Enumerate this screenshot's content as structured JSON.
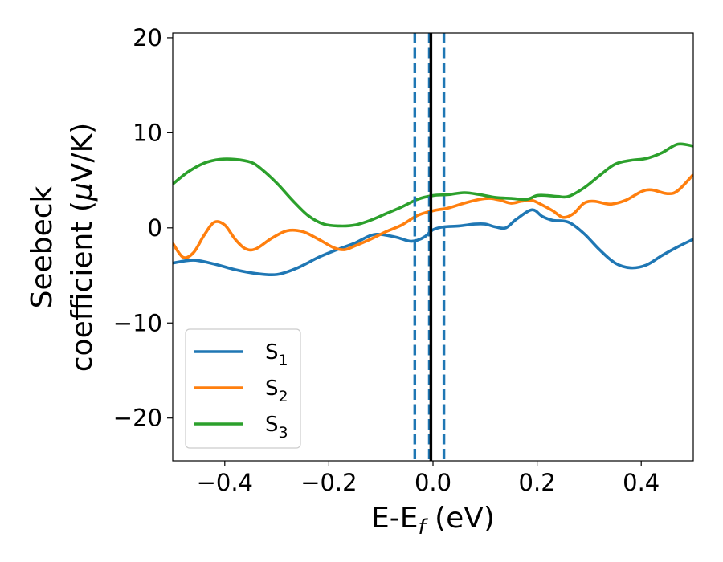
{
  "chart_data": {
    "type": "line",
    "title": "",
    "xlabel": {
      "main": "E-E",
      "sub": "f",
      "unit": " (eV)"
    },
    "ylabel": {
      "line1": "Seebeck",
      "line2_main": "coefficient  (",
      "line2_mu": "μ",
      "line2_unit": "V/K)"
    },
    "xlim": [
      -0.5,
      0.5
    ],
    "ylim": [
      -24.5,
      20.5
    ],
    "xticks": [
      {
        "value": -0.4,
        "label": "−0.4"
      },
      {
        "value": -0.2,
        "label": "−0.2"
      },
      {
        "value": 0.0,
        "label": "0.0"
      },
      {
        "value": 0.2,
        "label": "0.2"
      },
      {
        "value": 0.4,
        "label": "0.4"
      }
    ],
    "yticks": [
      {
        "value": -20,
        "label": "−20"
      },
      {
        "value": -10,
        "label": "−10"
      },
      {
        "value": 0,
        "label": "0"
      },
      {
        "value": 10,
        "label": "10"
      },
      {
        "value": 20,
        "label": "20"
      }
    ],
    "grid": false,
    "legend_position": "lower-left",
    "series": [
      {
        "name": "S",
        "sub": "1",
        "color": "#1f77b4",
        "points": [
          [
            -0.5,
            -3.7
          ],
          [
            -0.46,
            -3.4
          ],
          [
            -0.42,
            -3.8
          ],
          [
            -0.38,
            -4.4
          ],
          [
            -0.34,
            -4.8
          ],
          [
            -0.3,
            -4.9
          ],
          [
            -0.26,
            -4.2
          ],
          [
            -0.22,
            -3.1
          ],
          [
            -0.18,
            -2.2
          ],
          [
            -0.15,
            -1.6
          ],
          [
            -0.12,
            -0.8
          ],
          [
            -0.1,
            -0.7
          ],
          [
            -0.07,
            -1.0
          ],
          [
            -0.045,
            -1.4
          ],
          [
            -0.03,
            -1.3
          ],
          [
            -0.015,
            -0.9
          ],
          [
            0.0,
            -0.2
          ],
          [
            0.02,
            0.1
          ],
          [
            0.05,
            0.2
          ],
          [
            0.08,
            0.4
          ],
          [
            0.1,
            0.4
          ],
          [
            0.12,
            0.1
          ],
          [
            0.14,
            0.0
          ],
          [
            0.16,
            0.9
          ],
          [
            0.19,
            1.9
          ],
          [
            0.21,
            1.2
          ],
          [
            0.23,
            0.8
          ],
          [
            0.26,
            0.6
          ],
          [
            0.29,
            -0.6
          ],
          [
            0.32,
            -2.3
          ],
          [
            0.35,
            -3.7
          ],
          [
            0.38,
            -4.2
          ],
          [
            0.41,
            -3.9
          ],
          [
            0.44,
            -2.9
          ],
          [
            0.47,
            -2.0
          ],
          [
            0.5,
            -1.2
          ]
        ]
      },
      {
        "name": "S",
        "sub": "2",
        "color": "#ff7f0e",
        "points": [
          [
            -0.5,
            -1.6
          ],
          [
            -0.48,
            -3.1
          ],
          [
            -0.46,
            -2.6
          ],
          [
            -0.44,
            -0.8
          ],
          [
            -0.42,
            0.6
          ],
          [
            -0.4,
            0.3
          ],
          [
            -0.38,
            -1.2
          ],
          [
            -0.36,
            -2.2
          ],
          [
            -0.34,
            -2.2
          ],
          [
            -0.31,
            -1.1
          ],
          [
            -0.28,
            -0.3
          ],
          [
            -0.25,
            -0.4
          ],
          [
            -0.22,
            -1.2
          ],
          [
            -0.19,
            -2.1
          ],
          [
            -0.17,
            -2.3
          ],
          [
            -0.15,
            -1.9
          ],
          [
            -0.12,
            -1.2
          ],
          [
            -0.09,
            -0.4
          ],
          [
            -0.06,
            0.3
          ],
          [
            -0.03,
            1.3
          ],
          [
            0.0,
            1.8
          ],
          [
            0.03,
            2.1
          ],
          [
            0.06,
            2.6
          ],
          [
            0.09,
            3.0
          ],
          [
            0.11,
            3.1
          ],
          [
            0.13,
            2.9
          ],
          [
            0.15,
            2.6
          ],
          [
            0.17,
            2.8
          ],
          [
            0.19,
            2.9
          ],
          [
            0.21,
            2.4
          ],
          [
            0.23,
            1.8
          ],
          [
            0.25,
            1.1
          ],
          [
            0.27,
            1.5
          ],
          [
            0.29,
            2.6
          ],
          [
            0.31,
            2.8
          ],
          [
            0.34,
            2.5
          ],
          [
            0.37,
            2.9
          ],
          [
            0.4,
            3.8
          ],
          [
            0.42,
            4.0
          ],
          [
            0.45,
            3.6
          ],
          [
            0.47,
            3.9
          ],
          [
            0.5,
            5.6
          ]
        ]
      },
      {
        "name": "S",
        "sub": "3",
        "color": "#2ca02c",
        "points": [
          [
            -0.5,
            4.6
          ],
          [
            -0.47,
            5.9
          ],
          [
            -0.44,
            6.8
          ],
          [
            -0.41,
            7.2
          ],
          [
            -0.38,
            7.2
          ],
          [
            -0.35,
            6.9
          ],
          [
            -0.33,
            6.2
          ],
          [
            -0.3,
            4.7
          ],
          [
            -0.27,
            2.9
          ],
          [
            -0.24,
            1.3
          ],
          [
            -0.21,
            0.4
          ],
          [
            -0.18,
            0.2
          ],
          [
            -0.15,
            0.3
          ],
          [
            -0.12,
            0.8
          ],
          [
            -0.09,
            1.5
          ],
          [
            -0.06,
            2.2
          ],
          [
            -0.03,
            3.0
          ],
          [
            0.0,
            3.4
          ],
          [
            0.03,
            3.5
          ],
          [
            0.06,
            3.7
          ],
          [
            0.09,
            3.5
          ],
          [
            0.12,
            3.2
          ],
          [
            0.15,
            3.1
          ],
          [
            0.18,
            3.0
          ],
          [
            0.2,
            3.4
          ],
          [
            0.22,
            3.4
          ],
          [
            0.24,
            3.3
          ],
          [
            0.26,
            3.3
          ],
          [
            0.29,
            4.2
          ],
          [
            0.32,
            5.5
          ],
          [
            0.35,
            6.7
          ],
          [
            0.38,
            7.1
          ],
          [
            0.41,
            7.3
          ],
          [
            0.44,
            7.9
          ],
          [
            0.47,
            8.8
          ],
          [
            0.5,
            8.6
          ]
        ]
      }
    ],
    "vlines": [
      {
        "x": -0.035,
        "style": "dashed",
        "color": "#1f77b4"
      },
      {
        "x": -0.007,
        "style": "dashed",
        "color": "#1f77b4"
      },
      {
        "x": 0.021,
        "style": "dashed",
        "color": "#1f77b4"
      },
      {
        "x": -0.004,
        "style": "solid",
        "color": "#000000"
      }
    ]
  }
}
